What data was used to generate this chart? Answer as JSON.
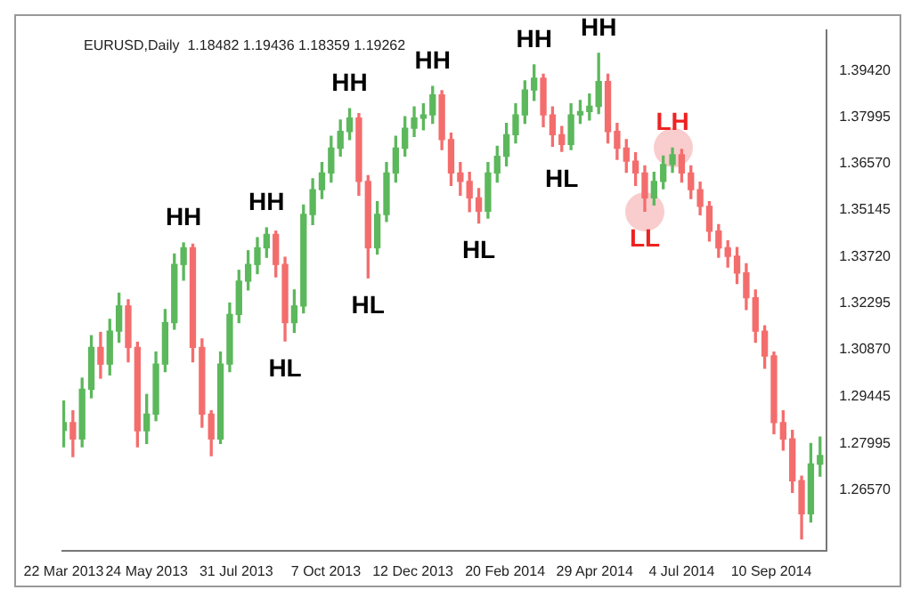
{
  "chart_data": {
    "type": "candlestick",
    "title": "EURUSD,Daily  1.18482 1.19436 1.18359 1.19262",
    "xlim": [
      "2013-03-21",
      "2014-10-22"
    ],
    "xticks": [
      {
        "value": "2013-03-22",
        "label": "22 Mar 2013"
      },
      {
        "value": "2013-05-24",
        "label": "24 May 2013"
      },
      {
        "value": "2013-07-31",
        "label": "31 Jul 2013"
      },
      {
        "value": "2013-10-07",
        "label": "7 Oct 2013"
      },
      {
        "value": "2013-12-12",
        "label": "12 Dec 2013"
      },
      {
        "value": "2014-02-20",
        "label": "20 Feb 2014"
      },
      {
        "value": "2014-04-29",
        "label": "29 Apr 2014"
      },
      {
        "value": "2014-07-04",
        "label": "4 Jul 2014"
      },
      {
        "value": "2014-09-10",
        "label": "10 Sep 2014"
      }
    ],
    "ylim": [
      1.2472,
      1.4066
    ],
    "yticks": [
      {
        "value": 1.2657,
        "label": "1.26570"
      },
      {
        "value": 1.27995,
        "label": "1.27995"
      },
      {
        "value": 1.29445,
        "label": "1.29445"
      },
      {
        "value": 1.3087,
        "label": "1.30870"
      },
      {
        "value": 1.32295,
        "label": "1.32295"
      },
      {
        "value": 1.3372,
        "label": "1.33720"
      },
      {
        "value": 1.35145,
        "label": "1.35145"
      },
      {
        "value": 1.3657,
        "label": "1.36570"
      },
      {
        "value": 1.37995,
        "label": "1.37995"
      },
      {
        "value": 1.3942,
        "label": "1.39420"
      }
    ],
    "series": [
      {
        "color": "#5cb85c",
        "x": [
          "2013-03-22",
          "2013-04-05",
          "2013-04-12",
          "2013-04-26",
          "2013-05-03",
          "2013-05-24",
          "2013-05-31",
          "2013-06-07",
          "2013-06-14",
          "2013-06-21",
          "2013-07-19",
          "2013-07-26",
          "2013-08-02",
          "2013-08-09",
          "2013-08-16",
          "2013-08-23",
          "2013-09-13",
          "2013-09-20",
          "2013-09-27",
          "2013-10-04",
          "2013-10-11",
          "2013-10-18",
          "2013-10-25",
          "2013-11-15",
          "2013-11-22",
          "2013-11-29",
          "2013-12-06",
          "2013-12-13",
          "2013-12-20",
          "2013-12-27",
          "2014-02-07",
          "2014-02-14",
          "2014-02-21",
          "2014-02-28",
          "2014-03-07",
          "2014-03-14",
          "2014-04-11",
          "2014-04-18",
          "2014-04-25",
          "2014-05-02",
          "2014-06-13",
          "2014-06-20",
          "2014-06-27",
          "2014-10-10",
          "2014-10-17"
        ],
        "ohlc": [
          [
            1.284,
            1.293,
            1.279,
            1.2864
          ],
          [
            1.2814,
            1.3,
            1.279,
            1.2966
          ],
          [
            1.2966,
            1.313,
            1.294,
            1.3094
          ],
          [
            1.3043,
            1.318,
            1.301,
            1.3144
          ],
          [
            1.3144,
            1.326,
            1.311,
            1.3221
          ],
          [
            1.2839,
            1.295,
            1.28,
            1.289
          ],
          [
            1.289,
            1.308,
            1.287,
            1.3043
          ],
          [
            1.3043,
            1.321,
            1.302,
            1.317
          ],
          [
            1.317,
            1.338,
            1.315,
            1.3348
          ],
          [
            1.3348,
            1.3414,
            1.33,
            1.3399
          ],
          [
            1.2814,
            1.308,
            1.28,
            1.3043
          ],
          [
            1.3043,
            1.323,
            1.302,
            1.3195
          ],
          [
            1.3195,
            1.333,
            1.317,
            1.3297
          ],
          [
            1.3297,
            1.339,
            1.327,
            1.3348
          ],
          [
            1.3348,
            1.343,
            1.332,
            1.3399
          ],
          [
            1.3399,
            1.346,
            1.337,
            1.344
          ],
          [
            1.317,
            1.327,
            1.314,
            1.3221
          ],
          [
            1.3221,
            1.353,
            1.32,
            1.3501
          ],
          [
            1.3501,
            1.361,
            1.347,
            1.3577
          ],
          [
            1.3577,
            1.366,
            1.355,
            1.3628
          ],
          [
            1.3628,
            1.374,
            1.36,
            1.3704
          ],
          [
            1.3704,
            1.379,
            1.368,
            1.3755
          ],
          [
            1.3755,
            1.3825,
            1.373,
            1.3796
          ],
          [
            1.3399,
            1.354,
            1.338,
            1.3501
          ],
          [
            1.3501,
            1.366,
            1.348,
            1.3628
          ],
          [
            1.3628,
            1.374,
            1.36,
            1.3704
          ],
          [
            1.3704,
            1.38,
            1.368,
            1.3765
          ],
          [
            1.3765,
            1.383,
            1.374,
            1.3796
          ],
          [
            1.3796,
            1.384,
            1.376,
            1.3806
          ],
          [
            1.3806,
            1.3893,
            1.378,
            1.3867
          ],
          [
            1.3511,
            1.366,
            1.349,
            1.3628
          ],
          [
            1.3628,
            1.371,
            1.36,
            1.3679
          ],
          [
            1.3679,
            1.378,
            1.365,
            1.3745
          ],
          [
            1.3745,
            1.384,
            1.372,
            1.3806
          ],
          [
            1.3806,
            1.391,
            1.378,
            1.3882
          ],
          [
            1.3882,
            1.3959,
            1.385,
            1.3918
          ],
          [
            1.3715,
            1.384,
            1.37,
            1.3806
          ],
          [
            1.3806,
            1.385,
            1.378,
            1.3816
          ],
          [
            1.3816,
            1.387,
            1.379,
            1.3832
          ],
          [
            1.3832,
            1.3994,
            1.381,
            1.3908
          ],
          [
            1.3552,
            1.363,
            1.353,
            1.3602
          ],
          [
            1.3602,
            1.368,
            1.358,
            1.3654
          ],
          [
            1.3654,
            1.3704,
            1.363,
            1.3684
          ],
          [
            1.2585,
            1.28,
            1.256,
            1.2737
          ],
          [
            1.2737,
            1.282,
            1.27,
            1.2763
          ]
        ]
      },
      {
        "color": "#f46d6d",
        "x": [
          "2013-03-29",
          "2013-04-19",
          "2013-05-10",
          "2013-05-17",
          "2013-06-28",
          "2013-07-05",
          "2013-07-12",
          "2013-08-30",
          "2013-09-06",
          "2013-11-01",
          "2013-11-08",
          "2014-01-03",
          "2014-01-10",
          "2014-01-17",
          "2014-01-24",
          "2014-01-31",
          "2014-03-21",
          "2014-03-28",
          "2014-04-04",
          "2014-05-09",
          "2014-05-16",
          "2014-05-23",
          "2014-05-30",
          "2014-06-06",
          "2014-07-04",
          "2014-07-11",
          "2014-07-18",
          "2014-07-25",
          "2014-08-01",
          "2014-08-08",
          "2014-08-15",
          "2014-08-22",
          "2014-08-29",
          "2014-09-05",
          "2014-09-12",
          "2014-09-19",
          "2014-09-26",
          "2014-10-03"
        ],
        "ohlc": [
          [
            1.2864,
            1.29,
            1.276,
            1.2814
          ],
          [
            1.3094,
            1.314,
            1.3,
            1.3043
          ],
          [
            1.3221,
            1.324,
            1.305,
            1.3094
          ],
          [
            1.3094,
            1.311,
            1.279,
            1.2839
          ],
          [
            1.3399,
            1.341,
            1.305,
            1.3094
          ],
          [
            1.3094,
            1.312,
            1.285,
            1.289
          ],
          [
            1.289,
            1.29,
            1.2763,
            1.2814
          ],
          [
            1.344,
            1.345,
            1.331,
            1.3348
          ],
          [
            1.3348,
            1.337,
            1.3114,
            1.317
          ],
          [
            1.3796,
            1.381,
            1.356,
            1.3602
          ],
          [
            1.3602,
            1.362,
            1.3307,
            1.3399
          ],
          [
            1.3867,
            1.388,
            1.37,
            1.373
          ],
          [
            1.373,
            1.375,
            1.359,
            1.3628
          ],
          [
            1.3628,
            1.366,
            1.356,
            1.3602
          ],
          [
            1.3602,
            1.363,
            1.351,
            1.3552
          ],
          [
            1.3552,
            1.358,
            1.3475,
            1.3511
          ],
          [
            1.3918,
            1.393,
            1.377,
            1.3806
          ],
          [
            1.3806,
            1.383,
            1.371,
            1.3745
          ],
          [
            1.3745,
            1.377,
            1.3694,
            1.3715
          ],
          [
            1.3908,
            1.393,
            1.372,
            1.3755
          ],
          [
            1.3755,
            1.378,
            1.367,
            1.3704
          ],
          [
            1.3704,
            1.373,
            1.363,
            1.3664
          ],
          [
            1.3664,
            1.369,
            1.359,
            1.3628
          ],
          [
            1.3628,
            1.365,
            1.3511,
            1.3552
          ],
          [
            1.3684,
            1.37,
            1.36,
            1.3628
          ],
          [
            1.3628,
            1.365,
            1.355,
            1.3577
          ],
          [
            1.3577,
            1.36,
            1.35,
            1.3526
          ],
          [
            1.3526,
            1.354,
            1.342,
            1.345
          ],
          [
            1.345,
            1.347,
            1.337,
            1.3399
          ],
          [
            1.3399,
            1.342,
            1.334,
            1.3373
          ],
          [
            1.3373,
            1.34,
            1.329,
            1.3322
          ],
          [
            1.3322,
            1.335,
            1.321,
            1.3246
          ],
          [
            1.3246,
            1.327,
            1.311,
            1.3144
          ],
          [
            1.3144,
            1.316,
            1.303,
            1.3068
          ],
          [
            1.3068,
            1.308,
            1.283,
            1.2864
          ],
          [
            1.2864,
            1.29,
            1.278,
            1.2814
          ],
          [
            1.2814,
            1.284,
            1.265,
            1.2686
          ],
          [
            1.2686,
            1.27,
            1.2508,
            1.2585
          ]
        ]
      }
    ],
    "annotations": [
      {
        "text": "HH",
        "x": "2013-06-21",
        "y": 1.3414
      },
      {
        "text": "HH",
        "x": "2013-08-23",
        "y": 1.346
      },
      {
        "text": "HL",
        "x": "2013-09-06",
        "y": 1.3114
      },
      {
        "text": "HH",
        "x": "2013-10-25",
        "y": 1.3825
      },
      {
        "text": "HL",
        "x": "2013-11-08",
        "y": 1.3307
      },
      {
        "text": "HH",
        "x": "2013-12-27",
        "y": 1.3893
      },
      {
        "text": "HL",
        "x": "2014-01-31",
        "y": 1.3475
      },
      {
        "text": "HH",
        "x": "2014-03-14",
        "y": 1.3959
      },
      {
        "text": "HL",
        "x": "2014-04-04",
        "y": 1.3694
      },
      {
        "text": "HH",
        "x": "2014-05-02",
        "y": 1.3994
      },
      {
        "text": "LL",
        "x": "2014-06-06",
        "y": 1.3511
      },
      {
        "text": "LH",
        "x": "2014-06-27",
        "y": 1.3704
      }
    ]
  }
}
